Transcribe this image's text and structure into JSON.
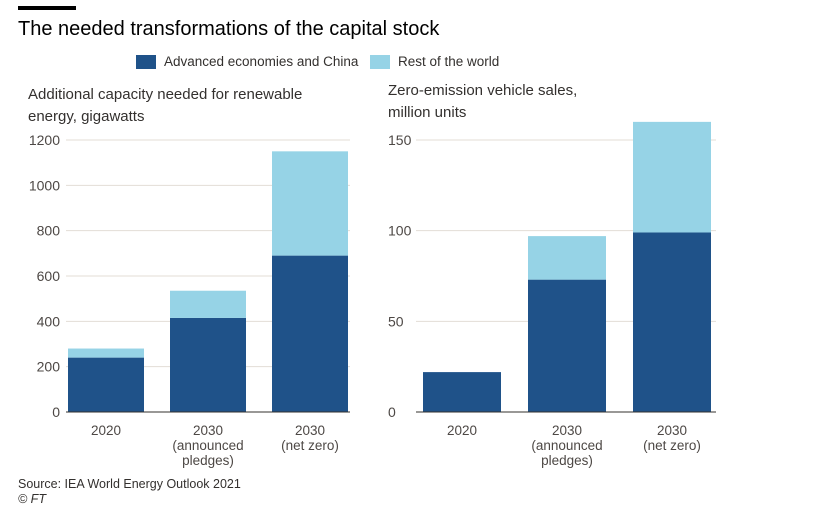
{
  "headline": "The needed transformations of the capital stock",
  "legend": [
    {
      "label": "Advanced economies and China",
      "color": "#1f5289"
    },
    {
      "label": "Rest of the world",
      "color": "#96d3e6"
    }
  ],
  "source": "Source: IEA World Energy Outlook 2021",
  "copyright": "© FT",
  "colors": {
    "gridline": "#e3ddd6",
    "baseline": "#33302e"
  },
  "chart_data": [
    {
      "type": "bar",
      "stacked": true,
      "title": "Additional capacity needed for renewable energy, gigawatts",
      "title_lines": [
        "Additional capacity needed for renewable",
        "energy, gigawatts"
      ],
      "categories": [
        "2020",
        "2030 (announced pledges)",
        "2030 (net zero)"
      ],
      "category_lines": [
        [
          "2020"
        ],
        [
          "2030",
          "(announced",
          "pledges)"
        ],
        [
          "2030",
          "(net zero)"
        ]
      ],
      "series": [
        {
          "name": "Advanced economies and China",
          "values": [
            240,
            415,
            690
          ]
        },
        {
          "name": "Rest of the world",
          "values": [
            40,
            120,
            460
          ]
        }
      ],
      "ylim": [
        0,
        1200
      ],
      "yticks": [
        0,
        200,
        400,
        600,
        800,
        1000,
        1200
      ],
      "grid": true
    },
    {
      "type": "bar",
      "stacked": true,
      "title": "Zero-emission vehicle sales, million units",
      "title_lines": [
        "Zero-emission vehicle sales,",
        "million units"
      ],
      "categories": [
        "2020",
        "2030 (announced pledges)",
        "2030 (net zero)"
      ],
      "category_lines": [
        [
          "2020"
        ],
        [
          "2030",
          "(announced",
          "pledges)"
        ],
        [
          "2030",
          "(net zero)"
        ]
      ],
      "series": [
        {
          "name": "Advanced economies and China",
          "values": [
            22,
            73,
            99
          ]
        },
        {
          "name": "Rest of the world",
          "values": [
            0,
            24,
            61
          ]
        }
      ],
      "ylim": [
        0,
        150
      ],
      "yticks": [
        0,
        50,
        100,
        150
      ],
      "grid": true
    }
  ]
}
